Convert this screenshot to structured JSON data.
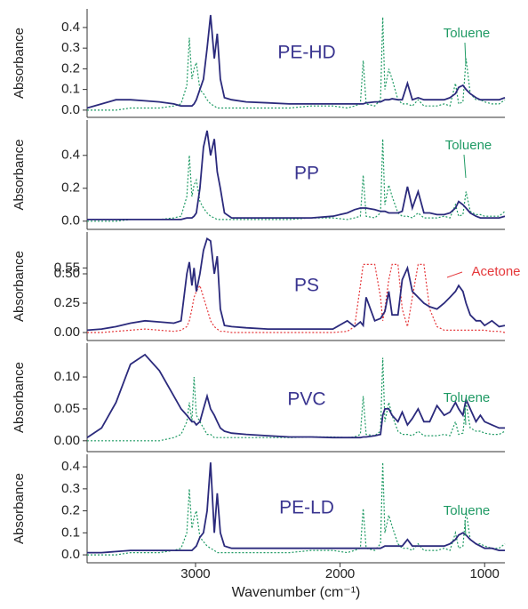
{
  "chart_data": [
    {
      "type": "line",
      "ylabel": "Absorbance",
      "x": [
        3750,
        3650,
        3550,
        3450,
        3350,
        3250,
        3150,
        3100,
        3060,
        3043,
        3025,
        3010,
        2994,
        2970,
        2945,
        2920,
        2896,
        2870,
        2850,
        2828,
        2800,
        2750,
        2650,
        2500,
        2350,
        2200,
        2050,
        1950,
        1900,
        1860,
        1840,
        1820,
        1760,
        1720,
        1705,
        1690,
        1663,
        1640,
        1600,
        1570,
        1534,
        1500,
        1460,
        1420,
        1380,
        1330,
        1280,
        1240,
        1202,
        1180,
        1150,
        1129,
        1100,
        1060,
        1030,
        1000,
        950,
        900,
        860
      ],
      "xlim": [
        3750,
        860
      ],
      "ylim": [
        -0.035,
        0.49
      ],
      "yticks": [
        {
          "value": 0,
          "label": "0.0"
        },
        0.1,
        0.2,
        0.3,
        0.4
      ],
      "series": [
        {
          "name": "PE-HD",
          "color": "#2b2a7c",
          "values": [
            0.01,
            0.03,
            0.05,
            0.05,
            0.045,
            0.04,
            0.03,
            0.02,
            0.02,
            0.02,
            0.02,
            0.03,
            0.05,
            0.1,
            0.15,
            0.3,
            0.46,
            0.25,
            0.37,
            0.15,
            0.06,
            0.05,
            0.04,
            0.035,
            0.03,
            0.03,
            0.03,
            0.03,
            0.03,
            0.03,
            0.03,
            0.035,
            0.04,
            0.04,
            0.045,
            0.05,
            0.05,
            0.055,
            0.05,
            0.05,
            0.13,
            0.05,
            0.06,
            0.05,
            0.05,
            0.05,
            0.05,
            0.06,
            0.08,
            0.11,
            0.12,
            0.1,
            0.08,
            0.06,
            0.05,
            0.05,
            0.05,
            0.05,
            0.06
          ]
        },
        {
          "name": "Toluene",
          "color": "#1f9a64",
          "values": [
            0.0,
            0.0,
            0.0,
            0.01,
            0.01,
            0.01,
            0.02,
            0.03,
            0.12,
            0.35,
            0.15,
            0.2,
            0.23,
            0.1,
            0.08,
            0.05,
            0.03,
            0.02,
            0.01,
            0.01,
            0.01,
            0.01,
            0.01,
            0.01,
            0.01,
            0.02,
            0.02,
            0.01,
            0.02,
            0.03,
            0.24,
            0.03,
            0.02,
            0.05,
            0.45,
            0.1,
            0.2,
            0.15,
            0.05,
            0.03,
            0.03,
            0.02,
            0.05,
            0.02,
            0.02,
            0.02,
            0.03,
            0.02,
            0.13,
            0.03,
            0.04,
            0.25,
            0.08,
            0.05,
            0.05,
            0.04,
            0.03,
            0.03,
            0.05
          ]
        }
      ]
    },
    {
      "type": "line",
      "ylabel": "Absorbance",
      "x": [
        3750,
        3650,
        3550,
        3450,
        3350,
        3250,
        3150,
        3100,
        3060,
        3043,
        3025,
        3010,
        2994,
        2970,
        2945,
        2920,
        2896,
        2870,
        2850,
        2828,
        2800,
        2750,
        2650,
        2500,
        2350,
        2200,
        2050,
        1950,
        1900,
        1860,
        1840,
        1820,
        1760,
        1720,
        1705,
        1690,
        1663,
        1640,
        1600,
        1570,
        1534,
        1500,
        1460,
        1420,
        1380,
        1330,
        1280,
        1240,
        1202,
        1180,
        1150,
        1129,
        1100,
        1060,
        1030,
        1000,
        950,
        900,
        860
      ],
      "xlim": [
        3750,
        860
      ],
      "ylim": [
        -0.05,
        0.615
      ],
      "yticks": [
        {
          "value": 0,
          "label": "0.0"
        },
        0.2,
        0.4
      ],
      "series": [
        {
          "name": "PP",
          "color": "#2b2a7c",
          "values": [
            0.01,
            0.01,
            0.01,
            0.01,
            0.01,
            0.01,
            0.01,
            0.01,
            0.02,
            0.02,
            0.02,
            0.03,
            0.05,
            0.2,
            0.45,
            0.55,
            0.4,
            0.5,
            0.3,
            0.2,
            0.05,
            0.02,
            0.02,
            0.02,
            0.02,
            0.02,
            0.03,
            0.05,
            0.07,
            0.08,
            0.08,
            0.08,
            0.07,
            0.06,
            0.06,
            0.06,
            0.05,
            0.05,
            0.05,
            0.06,
            0.21,
            0.08,
            0.18,
            0.05,
            0.05,
            0.04,
            0.04,
            0.05,
            0.08,
            0.12,
            0.1,
            0.08,
            0.05,
            0.03,
            0.02,
            0.02,
            0.02,
            0.02,
            0.03
          ]
        },
        {
          "name": "Toluene",
          "color": "#1f9a64",
          "values": [
            0.0,
            0.0,
            0.0,
            0.01,
            0.01,
            0.01,
            0.02,
            0.03,
            0.15,
            0.4,
            0.15,
            0.22,
            0.25,
            0.12,
            0.08,
            0.05,
            0.03,
            0.02,
            0.01,
            0.01,
            0.01,
            0.01,
            0.01,
            0.01,
            0.01,
            0.02,
            0.02,
            0.01,
            0.02,
            0.03,
            0.28,
            0.03,
            0.02,
            0.05,
            0.5,
            0.1,
            0.22,
            0.15,
            0.05,
            0.03,
            0.03,
            0.02,
            0.05,
            0.02,
            0.02,
            0.02,
            0.03,
            0.02,
            0.1,
            0.03,
            0.04,
            0.18,
            0.06,
            0.04,
            0.04,
            0.03,
            0.03,
            0.03,
            0.06
          ]
        }
      ]
    },
    {
      "type": "line",
      "ylabel": "Absorbance",
      "x": [
        3750,
        3650,
        3550,
        3450,
        3350,
        3250,
        3150,
        3100,
        3060,
        3043,
        3025,
        3010,
        2994,
        2970,
        2945,
        2920,
        2896,
        2870,
        2850,
        2828,
        2800,
        2750,
        2650,
        2500,
        2350,
        2200,
        2050,
        1950,
        1900,
        1860,
        1840,
        1820,
        1760,
        1720,
        1705,
        1690,
        1663,
        1640,
        1600,
        1570,
        1534,
        1500,
        1460,
        1420,
        1380,
        1330,
        1280,
        1240,
        1202,
        1180,
        1150,
        1129,
        1100,
        1060,
        1030,
        1000,
        950,
        900,
        860
      ],
      "xlim": [
        3750,
        860
      ],
      "ylim": [
        -0.068,
        0.856
      ],
      "yticks": [
        {
          "value": 0,
          "label": "0.00"
        },
        0.25,
        {
          "value": 0.5,
          "label": "0.50"
        },
        0.55
      ],
      "series": [
        {
          "name": "PS",
          "color": "#2b2a7c",
          "values": [
            0.02,
            0.03,
            0.05,
            0.08,
            0.1,
            0.09,
            0.08,
            0.1,
            0.5,
            0.6,
            0.4,
            0.55,
            0.35,
            0.5,
            0.7,
            0.8,
            0.78,
            0.5,
            0.65,
            0.2,
            0.06,
            0.05,
            0.04,
            0.03,
            0.03,
            0.03,
            0.03,
            0.1,
            0.05,
            0.09,
            0.06,
            0.3,
            0.1,
            0.12,
            0.15,
            0.18,
            0.35,
            0.15,
            0.15,
            0.45,
            0.55,
            0.35,
            0.3,
            0.25,
            0.22,
            0.2,
            0.25,
            0.3,
            0.35,
            0.4,
            0.35,
            0.25,
            0.15,
            0.1,
            0.1,
            0.06,
            0.1,
            0.05,
            0.06
          ]
        },
        {
          "name": "Acetone",
          "color": "#e5383b",
          "values": [
            0.0,
            0.0,
            0.01,
            0.02,
            0.03,
            0.02,
            0.01,
            0.02,
            0.05,
            0.1,
            0.2,
            0.3,
            0.35,
            0.4,
            0.3,
            0.2,
            0.1,
            0.05,
            0.03,
            0.01,
            0.01,
            0.0,
            0.0,
            0.0,
            0.0,
            0.0,
            0.0,
            0.01,
            0.05,
            0.4,
            0.58,
            0.58,
            0.58,
            0.3,
            0.1,
            0.2,
            0.45,
            0.58,
            0.58,
            0.2,
            0.05,
            0.3,
            0.58,
            0.58,
            0.2,
            0.05,
            0.02,
            0.02,
            0.02,
            0.02,
            0.02,
            0.02,
            0.02,
            0.02,
            0.02,
            0.02,
            0.01,
            0.01,
            0.0
          ]
        }
      ]
    },
    {
      "type": "line",
      "ylabel": "Absorbance",
      "x": [
        3750,
        3650,
        3550,
        3450,
        3350,
        3250,
        3150,
        3100,
        3060,
        3043,
        3025,
        3010,
        2994,
        2970,
        2945,
        2920,
        2896,
        2870,
        2850,
        2828,
        2800,
        2750,
        2650,
        2500,
        2350,
        2200,
        2050,
        1950,
        1900,
        1860,
        1840,
        1820,
        1760,
        1720,
        1705,
        1690,
        1663,
        1640,
        1600,
        1570,
        1534,
        1500,
        1460,
        1420,
        1380,
        1330,
        1280,
        1240,
        1202,
        1180,
        1150,
        1129,
        1100,
        1060,
        1030,
        1000,
        950,
        900,
        860
      ],
      "xlim": [
        3750,
        860
      ],
      "ylim": [
        -0.017,
        0.153
      ],
      "yticks": [
        {
          "value": 0,
          "label": "0.00"
        },
        0.05,
        {
          "value": 0.1,
          "label": "0.10"
        }
      ],
      "series": [
        {
          "name": "PVC",
          "color": "#2b2a7c",
          "values": [
            0.005,
            0.02,
            0.06,
            0.12,
            0.135,
            0.11,
            0.07,
            0.05,
            0.04,
            0.035,
            0.03,
            0.03,
            0.025,
            0.03,
            0.05,
            0.07,
            0.05,
            0.04,
            0.03,
            0.02,
            0.015,
            0.012,
            0.01,
            0.008,
            0.006,
            0.006,
            0.005,
            0.005,
            0.005,
            0.005,
            0.006,
            0.006,
            0.008,
            0.01,
            0.04,
            0.05,
            0.05,
            0.04,
            0.03,
            0.045,
            0.025,
            0.035,
            0.05,
            0.03,
            0.03,
            0.055,
            0.04,
            0.045,
            0.06,
            0.05,
            0.04,
            0.065,
            0.05,
            0.03,
            0.04,
            0.03,
            0.025,
            0.02,
            0.02
          ]
        },
        {
          "name": "Toluene",
          "color": "#1f9a64",
          "values": [
            0.0,
            0.0,
            0.0,
            0.0,
            0.0,
            0.0,
            0.005,
            0.01,
            0.03,
            0.06,
            0.03,
            0.1,
            0.04,
            0.03,
            0.02,
            0.01,
            0.01,
            0.005,
            0.005,
            0.005,
            0.005,
            0.005,
            0.005,
            0.005,
            0.005,
            0.006,
            0.006,
            0.005,
            0.006,
            0.01,
            0.07,
            0.01,
            0.008,
            0.015,
            0.13,
            0.03,
            0.06,
            0.04,
            0.015,
            0.01,
            0.01,
            0.008,
            0.015,
            0.008,
            0.008,
            0.008,
            0.01,
            0.008,
            0.03,
            0.01,
            0.012,
            0.06,
            0.02,
            0.015,
            0.015,
            0.012,
            0.01,
            0.01,
            0.015
          ]
        }
      ]
    },
    {
      "type": "line",
      "ylabel": "Absorbance",
      "xlabel": "Wavenumber (cm⁻¹)",
      "x": [
        3750,
        3650,
        3550,
        3450,
        3350,
        3250,
        3150,
        3100,
        3060,
        3043,
        3025,
        3010,
        2994,
        2970,
        2945,
        2920,
        2896,
        2870,
        2850,
        2828,
        2800,
        2750,
        2650,
        2500,
        2350,
        2200,
        2050,
        1950,
        1900,
        1860,
        1840,
        1820,
        1760,
        1720,
        1705,
        1690,
        1663,
        1640,
        1600,
        1570,
        1534,
        1500,
        1460,
        1420,
        1380,
        1330,
        1280,
        1240,
        1202,
        1180,
        1150,
        1129,
        1100,
        1060,
        1030,
        1000,
        950,
        900,
        860
      ],
      "xlim": [
        3750,
        860
      ],
      "xticks": [
        3000,
        2000,
        1000
      ],
      "ylim": [
        -0.036,
        0.457
      ],
      "yticks": [
        {
          "value": 0,
          "label": "0.0"
        },
        0.1,
        0.2,
        0.3,
        0.4
      ],
      "series": [
        {
          "name": "PE-LD",
          "color": "#2b2a7c",
          "values": [
            0.01,
            0.01,
            0.015,
            0.02,
            0.02,
            0.02,
            0.02,
            0.02,
            0.02,
            0.02,
            0.02,
            0.03,
            0.04,
            0.08,
            0.1,
            0.2,
            0.42,
            0.1,
            0.28,
            0.1,
            0.04,
            0.03,
            0.03,
            0.03,
            0.03,
            0.03,
            0.03,
            0.03,
            0.03,
            0.03,
            0.03,
            0.03,
            0.03,
            0.03,
            0.035,
            0.04,
            0.04,
            0.04,
            0.04,
            0.04,
            0.07,
            0.04,
            0.04,
            0.04,
            0.04,
            0.04,
            0.04,
            0.05,
            0.07,
            0.09,
            0.1,
            0.09,
            0.07,
            0.05,
            0.04,
            0.03,
            0.03,
            0.02,
            0.02
          ]
        },
        {
          "name": "Toluene",
          "color": "#1f9a64",
          "values": [
            0.0,
            0.0,
            0.0,
            0.01,
            0.01,
            0.01,
            0.02,
            0.03,
            0.1,
            0.3,
            0.12,
            0.17,
            0.2,
            0.08,
            0.06,
            0.04,
            0.03,
            0.02,
            0.01,
            0.01,
            0.01,
            0.01,
            0.01,
            0.01,
            0.01,
            0.02,
            0.02,
            0.01,
            0.02,
            0.03,
            0.21,
            0.03,
            0.02,
            0.05,
            0.42,
            0.1,
            0.18,
            0.13,
            0.05,
            0.03,
            0.03,
            0.02,
            0.05,
            0.02,
            0.02,
            0.02,
            0.03,
            0.02,
            0.1,
            0.03,
            0.04,
            0.2,
            0.07,
            0.05,
            0.05,
            0.04,
            0.03,
            0.03,
            0.05
          ]
        }
      ]
    }
  ]
}
